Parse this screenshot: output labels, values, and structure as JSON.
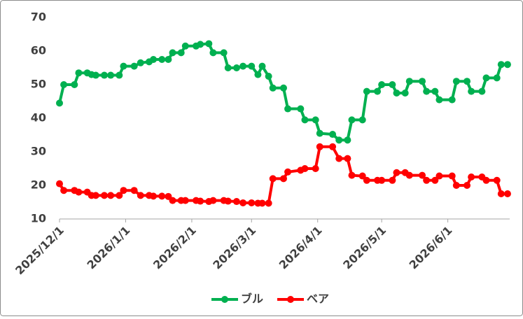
{
  "chart_data": {
    "type": "line",
    "x": [
      "2025/12/1",
      "2025/12/3",
      "2025/12/8",
      "2025/12/10",
      "2025/12/14",
      "2025/12/16",
      "2025/12/18",
      "2025/12/22",
      "2025/12/25",
      "2025/12/29",
      "2025/12/31",
      "2026/1/5",
      "2026/1/8",
      "2026/1/12",
      "2026/1/14",
      "2026/1/18",
      "2026/1/21",
      "2026/1/23",
      "2026/1/27",
      "2026/1/29",
      "2026/2/3",
      "2026/2/5",
      "2026/2/9",
      "2026/2/11",
      "2026/2/16",
      "2026/2/18",
      "2026/2/22",
      "2026/2/25",
      "2026/3/1",
      "2026/3/4",
      "2026/3/6",
      "2026/3/9",
      "2026/3/11",
      "2026/3/16",
      "2026/3/18",
      "2026/3/24",
      "2026/3/26",
      "2026/3/31",
      "2026/4/2",
      "2026/4/8",
      "2026/4/11",
      "2026/4/15",
      "2026/4/17",
      "2026/4/22",
      "2026/4/24",
      "2026/4/29",
      "2026/5/1",
      "2026/5/6",
      "2026/5/8",
      "2026/5/12",
      "2026/5/14",
      "2026/5/20",
      "2026/5/22",
      "2026/5/26",
      "2026/5/28",
      "2026/6/3",
      "2026/6/5",
      "2026/6/10",
      "2026/6/12",
      "2026/6/17",
      "2026/6/19",
      "2026/6/24",
      "2026/6/26",
      "2026/6/29"
    ],
    "series": [
      {
        "name": "ブル",
        "color": "#00b050",
        "values": [
          44.5,
          50,
          50,
          53.5,
          53.5,
          53,
          52.8,
          52.8,
          52.8,
          52.8,
          55.5,
          55.5,
          56.5,
          56.8,
          57.5,
          57.5,
          57.5,
          59.5,
          59.5,
          61.5,
          61.5,
          62,
          62.2,
          59.5,
          59.5,
          55,
          55,
          55.5,
          55.5,
          53,
          55.5,
          52.5,
          49,
          49,
          42.8,
          42.8,
          39.5,
          39.5,
          35.5,
          35.2,
          33.5,
          33.5,
          39.5,
          39.5,
          48,
          48,
          50,
          50,
          47.5,
          47.5,
          51,
          51,
          48,
          48,
          45.5,
          45.5,
          51,
          51,
          48,
          48,
          52,
          52,
          56,
          56
        ]
      },
      {
        "name": "ベア",
        "color": "#ff0000",
        "values": [
          20.5,
          18.5,
          18.5,
          18,
          18,
          17,
          17,
          17,
          17,
          17,
          18.5,
          18.5,
          17,
          17,
          16.8,
          16.8,
          16.7,
          15.5,
          15.5,
          15.5,
          15.5,
          15.3,
          15.2,
          15.5,
          15.5,
          15.3,
          15.2,
          14.8,
          14.8,
          14.7,
          14.7,
          14.7,
          22,
          22,
          24,
          24.5,
          25,
          25,
          31.5,
          31.5,
          28,
          28,
          23,
          22.8,
          21.5,
          21.5,
          21.5,
          21.5,
          23.8,
          23.8,
          23,
          23,
          21.5,
          21.5,
          22.8,
          22.8,
          20,
          20,
          22.5,
          22.5,
          21.5,
          21.5,
          17.5,
          17.5
        ]
      }
    ],
    "xlim": [
      "2025/12/1",
      "2026/6/30"
    ],
    "xticks": [
      "2025/12/1",
      "2026/1/1",
      "2026/2/1",
      "2026/3/1",
      "2026/4/1",
      "2026/5/1",
      "2026/6/1"
    ],
    "ylim": [
      10,
      70
    ],
    "yticks": [
      10,
      20,
      30,
      40,
      50,
      60,
      70
    ],
    "grid": false,
    "legend": "bottom"
  }
}
